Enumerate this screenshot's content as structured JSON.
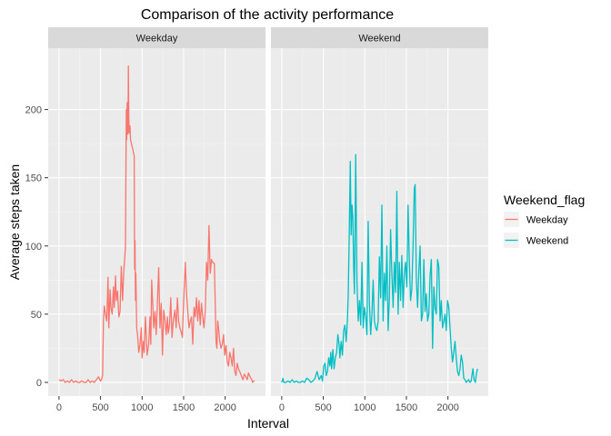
{
  "chart_data": {
    "type": "line",
    "title": "Comparison of the activity performance",
    "xlabel": "Interval",
    "ylabel": "Average steps taken",
    "xlim": [
      -130,
      2485
    ],
    "ylim": [
      -10,
      245
    ],
    "x_ticks": [
      0,
      500,
      1000,
      1500,
      2000
    ],
    "y_ticks": [
      0,
      50,
      100,
      150,
      200
    ],
    "x_tick_labels": [
      "0",
      "500",
      "1000",
      "1500",
      "2000"
    ],
    "y_tick_labels": [
      "0",
      "50",
      "100",
      "150",
      "200"
    ],
    "grid": true,
    "facets": [
      "Weekday",
      "Weekend"
    ],
    "legend": {
      "title": "Weekend_flag",
      "position": "right",
      "items": [
        {
          "label": "Weekday",
          "color": "#F8766D"
        },
        {
          "label": "Weekend",
          "color": "#00BFC4"
        }
      ]
    },
    "series": [
      {
        "name": "Weekday",
        "facet": "Weekday",
        "color": "#F8766D",
        "points": [
          [
            0,
            2
          ],
          [
            25,
            1
          ],
          [
            50,
            2
          ],
          [
            75,
            0
          ],
          [
            100,
            1
          ],
          [
            125,
            0
          ],
          [
            150,
            2
          ],
          [
            175,
            0
          ],
          [
            200,
            1
          ],
          [
            225,
            0
          ],
          [
            250,
            0
          ],
          [
            275,
            1
          ],
          [
            300,
            0
          ],
          [
            325,
            0
          ],
          [
            350,
            2
          ],
          [
            375,
            0
          ],
          [
            400,
            1
          ],
          [
            425,
            0
          ],
          [
            450,
            2
          ],
          [
            475,
            4
          ],
          [
            500,
            1
          ],
          [
            510,
            2
          ],
          [
            525,
            5
          ],
          [
            535,
            45
          ],
          [
            545,
            56
          ],
          [
            560,
            50
          ],
          [
            575,
            45
          ],
          [
            590,
            77
          ],
          [
            600,
            40
          ],
          [
            615,
            68
          ],
          [
            625,
            55
          ],
          [
            640,
            50
          ],
          [
            655,
            70
          ],
          [
            665,
            55
          ],
          [
            680,
            78
          ],
          [
            690,
            60
          ],
          [
            705,
            67
          ],
          [
            720,
            48
          ],
          [
            735,
            52
          ],
          [
            750,
            85
          ],
          [
            765,
            60
          ],
          [
            780,
            82
          ],
          [
            790,
            90
          ],
          [
            800,
            100
          ],
          [
            810,
            200
          ],
          [
            815,
            178
          ],
          [
            820,
            205
          ],
          [
            830,
            182
          ],
          [
            835,
            232
          ],
          [
            840,
            195
          ],
          [
            845,
            183
          ],
          [
            855,
            188
          ],
          [
            860,
            178
          ],
          [
            880,
            173
          ],
          [
            905,
            166
          ],
          [
            910,
            83
          ],
          [
            915,
            104
          ],
          [
            920,
            60
          ],
          [
            925,
            80
          ],
          [
            935,
            40
          ],
          [
            945,
            35
          ],
          [
            960,
            22
          ],
          [
            975,
            28
          ],
          [
            990,
            40
          ],
          [
            1000,
            18
          ],
          [
            1015,
            30
          ],
          [
            1025,
            22
          ],
          [
            1040,
            48
          ],
          [
            1050,
            35
          ],
          [
            1060,
            20
          ],
          [
            1080,
            28
          ],
          [
            1095,
            48
          ],
          [
            1105,
            28
          ],
          [
            1115,
            75
          ],
          [
            1130,
            55
          ],
          [
            1140,
            40
          ],
          [
            1155,
            52
          ],
          [
            1170,
            35
          ],
          [
            1185,
            60
          ],
          [
            1200,
            84
          ],
          [
            1215,
            40
          ],
          [
            1230,
            58
          ],
          [
            1245,
            20
          ],
          [
            1260,
            53
          ],
          [
            1275,
            46
          ],
          [
            1290,
            35
          ],
          [
            1305,
            48
          ],
          [
            1315,
            36
          ],
          [
            1330,
            42
          ],
          [
            1345,
            62
          ],
          [
            1360,
            33
          ],
          [
            1375,
            45
          ],
          [
            1395,
            53
          ],
          [
            1410,
            40
          ],
          [
            1425,
            62
          ],
          [
            1440,
            45
          ],
          [
            1455,
            40
          ],
          [
            1470,
            37
          ],
          [
            1485,
            33
          ],
          [
            1500,
            60
          ],
          [
            1520,
            88
          ],
          [
            1535,
            65
          ],
          [
            1550,
            52
          ],
          [
            1565,
            40
          ],
          [
            1580,
            45
          ],
          [
            1595,
            48
          ],
          [
            1610,
            28
          ],
          [
            1625,
            55
          ],
          [
            1640,
            48
          ],
          [
            1655,
            62
          ],
          [
            1670,
            45
          ],
          [
            1685,
            60
          ],
          [
            1700,
            42
          ],
          [
            1715,
            58
          ],
          [
            1730,
            48
          ],
          [
            1745,
            40
          ],
          [
            1760,
            52
          ],
          [
            1775,
            88
          ],
          [
            1790,
            75
          ],
          [
            1805,
            115
          ],
          [
            1820,
            80
          ],
          [
            1835,
            90
          ],
          [
            1850,
            88
          ],
          [
            1870,
            87
          ],
          [
            1890,
            30
          ],
          [
            1900,
            25
          ],
          [
            1910,
            45
          ],
          [
            1920,
            40
          ],
          [
            1935,
            30
          ],
          [
            1950,
            25
          ],
          [
            1965,
            28
          ],
          [
            1980,
            35
          ],
          [
            1995,
            20
          ],
          [
            2010,
            27
          ],
          [
            2025,
            15
          ],
          [
            2040,
            12
          ],
          [
            2055,
            22
          ],
          [
            2070,
            18
          ],
          [
            2085,
            12
          ],
          [
            2100,
            25
          ],
          [
            2115,
            8
          ],
          [
            2130,
            5
          ],
          [
            2145,
            14
          ],
          [
            2160,
            10
          ],
          [
            2175,
            8
          ],
          [
            2200,
            4
          ],
          [
            2215,
            2
          ],
          [
            2230,
            6
          ],
          [
            2250,
            4
          ],
          [
            2265,
            2
          ],
          [
            2280,
            7
          ],
          [
            2300,
            4
          ],
          [
            2320,
            2
          ],
          [
            2330,
            0
          ],
          [
            2340,
            1
          ],
          [
            2355,
            1
          ]
        ]
      },
      {
        "name": "Weekend",
        "facet": "Weekend",
        "color": "#00BFC4",
        "points": [
          [
            0,
            0
          ],
          [
            15,
            3
          ],
          [
            25,
            0
          ],
          [
            50,
            0
          ],
          [
            75,
            1
          ],
          [
            100,
            0
          ],
          [
            125,
            2
          ],
          [
            150,
            0
          ],
          [
            175,
            1
          ],
          [
            200,
            0
          ],
          [
            225,
            0
          ],
          [
            250,
            1
          ],
          [
            275,
            0
          ],
          [
            300,
            3
          ],
          [
            325,
            2
          ],
          [
            350,
            0
          ],
          [
            375,
            1
          ],
          [
            400,
            3
          ],
          [
            425,
            8
          ],
          [
            450,
            2
          ],
          [
            475,
            5
          ],
          [
            490,
            1
          ],
          [
            505,
            12
          ],
          [
            520,
            14
          ],
          [
            535,
            5
          ],
          [
            550,
            8
          ],
          [
            565,
            18
          ],
          [
            580,
            12
          ],
          [
            590,
            22
          ],
          [
            600,
            10
          ],
          [
            615,
            24
          ],
          [
            630,
            10
          ],
          [
            645,
            18
          ],
          [
            660,
            22
          ],
          [
            675,
            35
          ],
          [
            690,
            28
          ],
          [
            700,
            18
          ],
          [
            715,
            30
          ],
          [
            730,
            20
          ],
          [
            745,
            38
          ],
          [
            760,
            42
          ],
          [
            775,
            30
          ],
          [
            790,
            45
          ],
          [
            800,
            64
          ],
          [
            810,
            100
          ],
          [
            815,
            120
          ],
          [
            825,
            162
          ],
          [
            835,
            108
          ],
          [
            845,
            130
          ],
          [
            855,
            122
          ],
          [
            865,
            85
          ],
          [
            875,
            65
          ],
          [
            890,
            167
          ],
          [
            905,
            75
          ],
          [
            920,
            45
          ],
          [
            935,
            60
          ],
          [
            950,
            42
          ],
          [
            965,
            88
          ],
          [
            980,
            40
          ],
          [
            995,
            55
          ],
          [
            1010,
            48
          ],
          [
            1025,
            35
          ],
          [
            1040,
            118
          ],
          [
            1055,
            58
          ],
          [
            1070,
            35
          ],
          [
            1085,
            50
          ],
          [
            1100,
            75
          ],
          [
            1115,
            45
          ],
          [
            1130,
            40
          ],
          [
            1145,
            38
          ],
          [
            1160,
            45
          ],
          [
            1175,
            92
          ],
          [
            1190,
            62
          ],
          [
            1205,
            130
          ],
          [
            1220,
            45
          ],
          [
            1235,
            80
          ],
          [
            1250,
            60
          ],
          [
            1265,
            100
          ],
          [
            1280,
            38
          ],
          [
            1295,
            62
          ],
          [
            1310,
            112
          ],
          [
            1325,
            80
          ],
          [
            1340,
            55
          ],
          [
            1355,
            88
          ],
          [
            1370,
            66
          ],
          [
            1385,
            140
          ],
          [
            1400,
            50
          ],
          [
            1415,
            88
          ],
          [
            1430,
            60
          ],
          [
            1445,
            93
          ],
          [
            1460,
            55
          ],
          [
            1475,
            80
          ],
          [
            1490,
            88
          ],
          [
            1505,
            70
          ],
          [
            1520,
            130
          ],
          [
            1535,
            90
          ],
          [
            1550,
            60
          ],
          [
            1565,
            68
          ],
          [
            1580,
            100
          ],
          [
            1595,
            142
          ],
          [
            1605,
            145
          ],
          [
            1620,
            75
          ],
          [
            1635,
            55
          ],
          [
            1650,
            82
          ],
          [
            1665,
            100
          ],
          [
            1680,
            45
          ],
          [
            1695,
            50
          ],
          [
            1710,
            90
          ],
          [
            1725,
            52
          ],
          [
            1740,
            65
          ],
          [
            1755,
            45
          ],
          [
            1770,
            50
          ],
          [
            1785,
            78
          ],
          [
            1800,
            90
          ],
          [
            1815,
            25
          ],
          [
            1830,
            70
          ],
          [
            1845,
            55
          ],
          [
            1860,
            50
          ],
          [
            1875,
            90
          ],
          [
            1890,
            85
          ],
          [
            1905,
            45
          ],
          [
            1920,
            60
          ],
          [
            1935,
            40
          ],
          [
            1950,
            45
          ],
          [
            1965,
            50
          ],
          [
            1980,
            38
          ],
          [
            1995,
            60
          ],
          [
            2010,
            55
          ],
          [
            2025,
            40
          ],
          [
            2040,
            25
          ],
          [
            2055,
            15
          ],
          [
            2070,
            22
          ],
          [
            2085,
            30
          ],
          [
            2100,
            18
          ],
          [
            2115,
            8
          ],
          [
            2130,
            5
          ],
          [
            2145,
            10
          ],
          [
            2160,
            20
          ],
          [
            2175,
            15
          ],
          [
            2190,
            3
          ],
          [
            2205,
            2
          ],
          [
            2220,
            0
          ],
          [
            2235,
            1
          ],
          [
            2250,
            2
          ],
          [
            2265,
            0
          ],
          [
            2280,
            1
          ],
          [
            2300,
            10
          ],
          [
            2315,
            2
          ],
          [
            2330,
            0
          ],
          [
            2340,
            5
          ],
          [
            2355,
            10
          ]
        ]
      }
    ]
  }
}
